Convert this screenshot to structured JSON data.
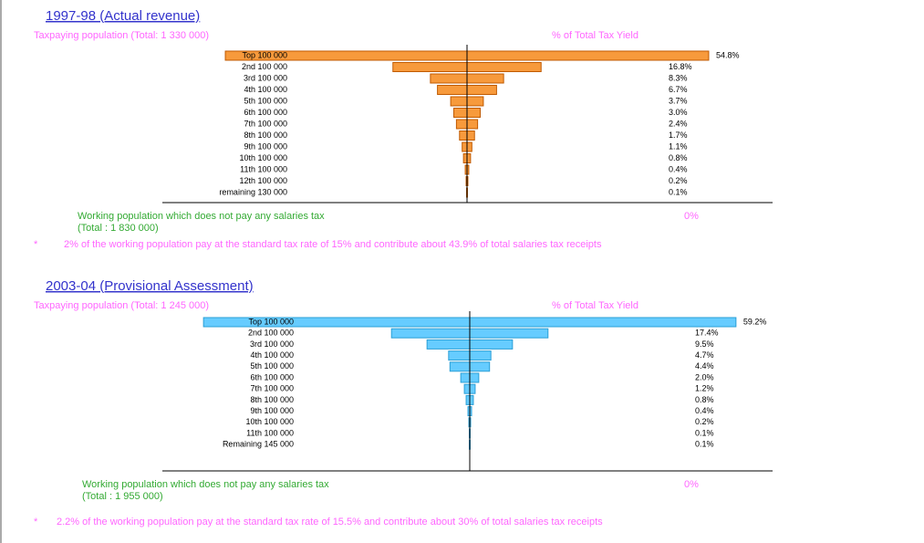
{
  "chart_data": [
    {
      "type": "funnel",
      "title": "1997-98 (Actual revenue)",
      "subtitle": "Taxpaying population (Total: 1 330 000)",
      "value_axis_label": "% of Total Tax Yield",
      "categories": [
        "Top 100 000",
        "2nd 100 000",
        "3rd 100 000",
        "4th 100 000",
        "5th 100 000",
        "6th 100 000",
        "7th 100 000",
        "8th 100 000",
        "9th 100 000",
        "10th 100 000",
        "11th 100 000",
        "12th 100 000",
        "remaining 130 000"
      ],
      "values": [
        54.8,
        16.8,
        8.3,
        6.7,
        3.7,
        3.0,
        2.4,
        1.7,
        1.1,
        0.8,
        0.4,
        0.2,
        0.1
      ],
      "value_labels": [
        "54.8%",
        "16.8%",
        "8.3%",
        "6.7%",
        "3.7%",
        "3.0%",
        "2.4%",
        "1.7%",
        "1.1%",
        "0.8%",
        "0.4%",
        "0.2%",
        "0.1%"
      ],
      "color": "#f79a3c",
      "nonpaying_label": "Working population which does not pay any salaries tax",
      "nonpaying_total": "(Total : 1 830 000)",
      "nonpaying_value_label": "0%",
      "footnote_marker": "*",
      "footnote": "2% of the working population pay at the standard tax rate of 15% and contribute about 43.9% of total salaries tax receipts"
    },
    {
      "type": "funnel",
      "title": "2003-04 (Provisional Assessment)",
      "subtitle": "Taxpaying population (Total: 1 245 000)",
      "value_axis_label": "% of Total Tax Yield",
      "categories": [
        "Top 100 000",
        "2nd 100 000",
        "3rd 100 000",
        "4th 100 000",
        "5th 100 000",
        "6th 100 000",
        "7th 100 000",
        "8th 100 000",
        "9th 100 000",
        "10th 100 000",
        "11th 100 000",
        "Remaining 145 000"
      ],
      "values": [
        59.2,
        17.4,
        9.5,
        4.7,
        4.4,
        2.0,
        1.2,
        0.8,
        0.4,
        0.2,
        0.1,
        0.1
      ],
      "value_labels": [
        "59.2%",
        "17.4%",
        "9.5%",
        "4.7%",
        "4.4%",
        "2.0%",
        "1.2%",
        "0.8%",
        "0.4%",
        "0.2%",
        "0.1%",
        "0.1%"
      ],
      "color": "#66ccff",
      "nonpaying_label": "Working population which does not pay any salaries tax",
      "nonpaying_total": "(Total : 1 955 000)",
      "nonpaying_value_label": "0%",
      "footnote_marker": "*",
      "footnote": "2.2% of the working population pay at the standard tax rate of 15.5% and contribute about 30% of total salaries tax receipts"
    }
  ]
}
